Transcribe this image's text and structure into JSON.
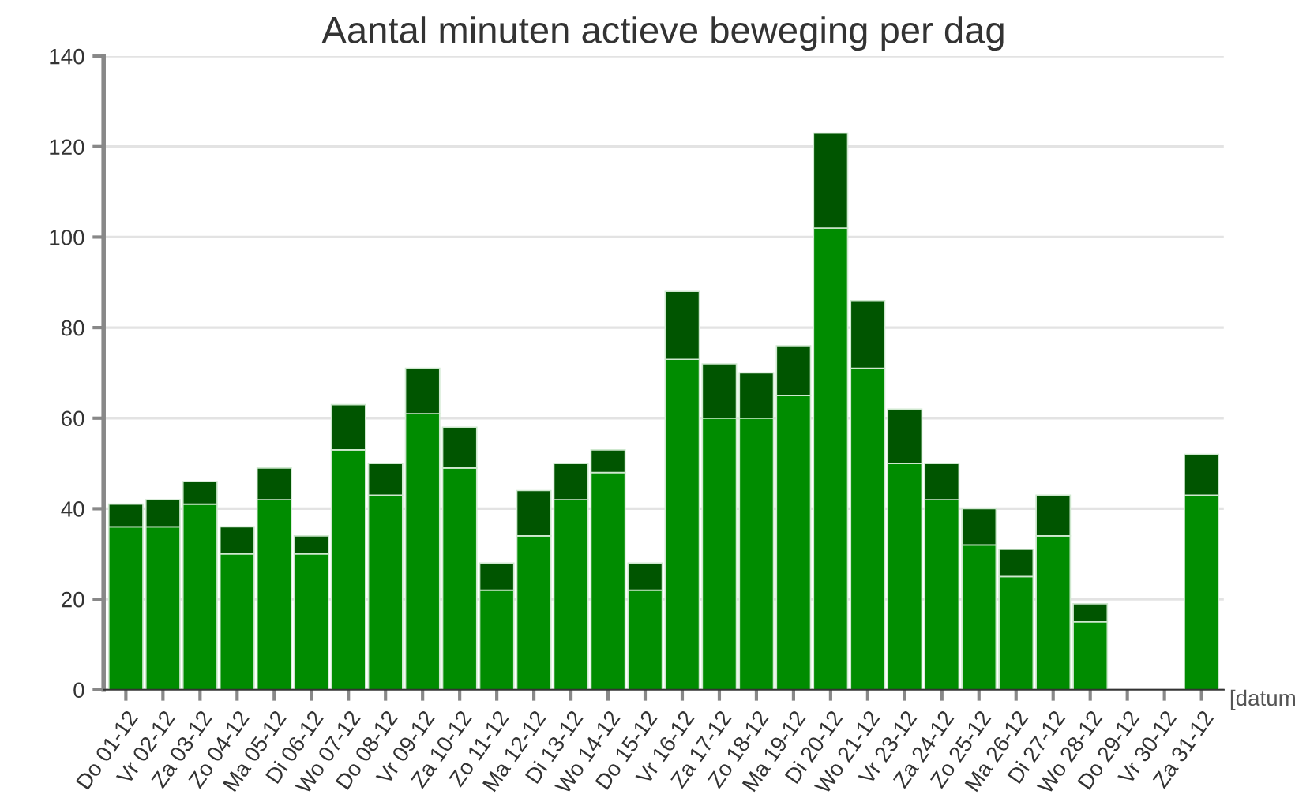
{
  "chart_data": {
    "type": "bar",
    "title": "Aantal minuten actieve beweging per dag",
    "xlabel": "[datum",
    "categories": [
      "Do 01-12",
      "Vr 02-12",
      "Za 03-12",
      "Zo 04-12",
      "Ma 05-12",
      "Di 06-12",
      "Wo 07-12",
      "Do 08-12",
      "Vr 09-12",
      "Za 10-12",
      "Zo 11-12",
      "Ma 12-12",
      "Di 13-12",
      "Wo 14-12",
      "Do 15-12",
      "Vr 16-12",
      "Za 17-12",
      "Zo 18-12",
      "Ma 19-12",
      "Di 20-12",
      "Wo 21-12",
      "Vr 23-12",
      "Za 24-12",
      "Zo 25-12",
      "Ma 26-12",
      "Di 27-12",
      "Wo 28-12",
      "Do 29-12",
      "Vr 30-12",
      "Za 31-12"
    ],
    "stacked": true,
    "series": [
      {
        "color": "#008c00",
        "values": [
          36,
          36,
          41,
          30,
          42,
          30,
          53,
          43,
          61,
          49,
          22,
          34,
          42,
          48,
          22,
          73,
          60,
          60,
          65,
          102,
          71,
          50,
          42,
          32,
          25,
          34,
          15,
          0,
          0,
          43
        ]
      },
      {
        "color": "#005500",
        "values": [
          5,
          6,
          5,
          6,
          7,
          4,
          10,
          7,
          10,
          9,
          6,
          10,
          8,
          5,
          6,
          15,
          12,
          10,
          11,
          21,
          15,
          12,
          8,
          8,
          6,
          9,
          4,
          0,
          0,
          9
        ]
      }
    ],
    "ylim": [
      0,
      140
    ],
    "yticks": [
      0,
      20,
      40,
      60,
      80,
      100,
      120,
      140
    ],
    "grid": "y"
  }
}
